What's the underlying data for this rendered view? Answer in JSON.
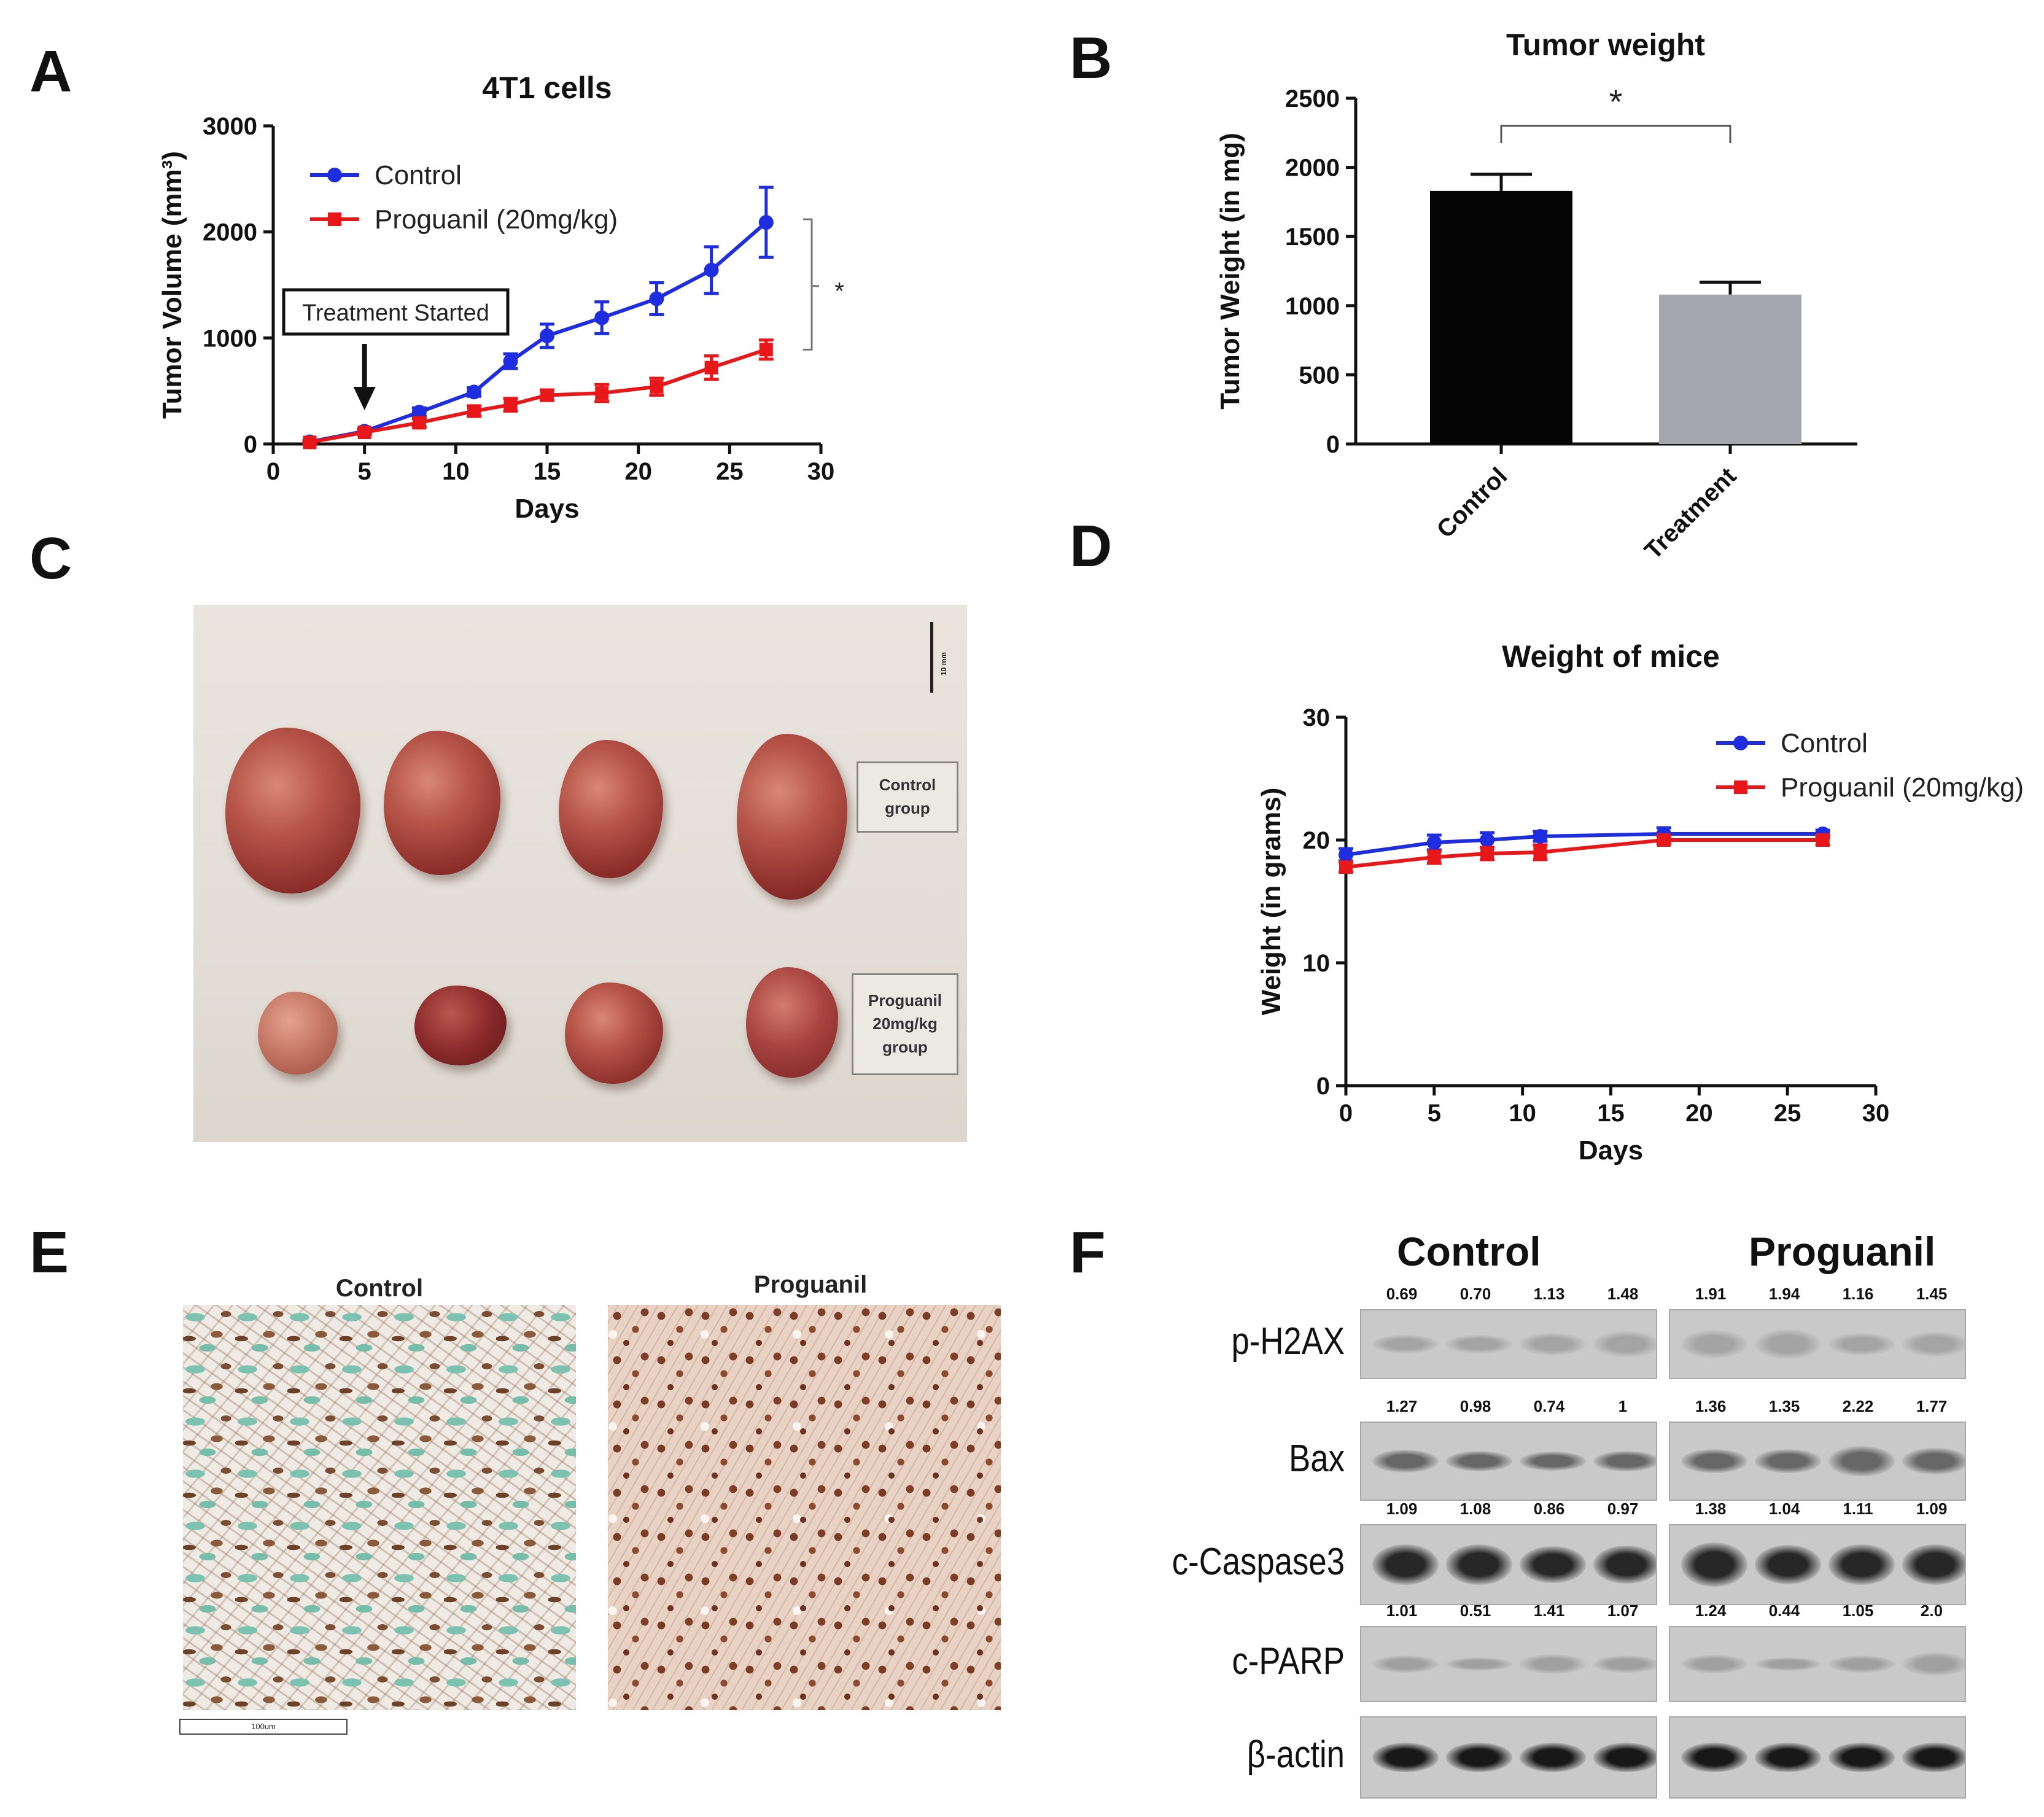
{
  "panel_letters": {
    "a": "A",
    "b": "B",
    "c": "C",
    "d": "D",
    "e": "E",
    "f": "F"
  },
  "chart_data": [
    {
      "id": "A",
      "type": "line",
      "title": "4T1 cells",
      "xlabel": "Days",
      "ylabel": "Tumor Volume (mm³)",
      "xlim": [
        0,
        30
      ],
      "ylim": [
        0,
        3000
      ],
      "xticks": [
        0,
        5,
        10,
        15,
        20,
        25,
        30
      ],
      "yticks": [
        0,
        1000,
        2000,
        3000
      ],
      "series": [
        {
          "name": "Control",
          "color": "#1f2de0",
          "marker": "circle",
          "x": [
            2,
            5,
            8,
            11,
            13,
            15,
            18,
            21,
            24,
            27
          ],
          "y": [
            20,
            120,
            300,
            490,
            780,
            1020,
            1190,
            1370,
            1640,
            2090
          ],
          "err": [
            10,
            25,
            40,
            40,
            70,
            110,
            150,
            150,
            220,
            330
          ]
        },
        {
          "name": "Proguanil (20mg/kg)",
          "color": "#e8171a",
          "marker": "square",
          "x": [
            2,
            5,
            8,
            11,
            13,
            15,
            18,
            21,
            24,
            27
          ],
          "y": [
            15,
            110,
            200,
            310,
            370,
            460,
            480,
            540,
            720,
            890
          ],
          "err": [
            10,
            20,
            40,
            50,
            60,
            50,
            80,
            80,
            110,
            90
          ]
        }
      ],
      "annotations": {
        "treatment_label": "Treatment Started",
        "arrow_at_x": 5,
        "significance": "*"
      }
    },
    {
      "id": "B",
      "type": "bar",
      "title": "Tumor weight",
      "xlabel": "",
      "ylabel": "Tumor Weight (in mg)",
      "ylim": [
        0,
        2500
      ],
      "yticks": [
        0,
        500,
        1000,
        1500,
        2000,
        2500
      ],
      "categories": [
        "Control",
        "Treatment"
      ],
      "values": [
        1830,
        1080
      ],
      "errors": [
        120,
        90
      ],
      "colors": [
        "#050505",
        "#a6a6ae"
      ],
      "significance": "*"
    },
    {
      "id": "D",
      "type": "line",
      "title": "Weight of mice",
      "xlabel": "Days",
      "ylabel": "Weight (in grams)",
      "xlim": [
        0,
        30
      ],
      "ylim": [
        0,
        30
      ],
      "xticks": [
        0,
        5,
        10,
        15,
        20,
        25,
        30
      ],
      "yticks": [
        0,
        10,
        20,
        30
      ],
      "series": [
        {
          "name": "Control",
          "color": "#1f2de0",
          "marker": "circle",
          "x": [
            0,
            5,
            8,
            11,
            18,
            27
          ],
          "y": [
            18.8,
            19.8,
            20.0,
            20.3,
            20.5,
            20.5
          ],
          "err": [
            0.5,
            0.6,
            0.6,
            0.4,
            0.5,
            0.3
          ]
        },
        {
          "name": "Proguanil (20mg/kg)",
          "color": "#e8171a",
          "marker": "square",
          "x": [
            0,
            5,
            8,
            11,
            18,
            27
          ],
          "y": [
            17.8,
            18.6,
            18.9,
            19.0,
            20.0,
            20.0
          ],
          "err": [
            0.4,
            0.5,
            0.5,
            0.6,
            0.3,
            0.4
          ]
        }
      ]
    }
  ],
  "photo": {
    "control_box_line1": "Control",
    "control_box_line2": "group",
    "proguanil_box_line1": "Proguanil",
    "proguanil_box_line2": "20mg/kg",
    "proguanil_box_line3": "group",
    "scale_label": "10 mm"
  },
  "histology": {
    "control_label": "Control",
    "proguanil_label": "Proguanil",
    "scale_label": "100um"
  },
  "western_blot": {
    "control_header": "Control",
    "proguanil_header": "Proguanil",
    "rows": [
      {
        "label": "p-H2AX",
        "control": [
          "0.69",
          "0.70",
          "1.13",
          "1.48"
        ],
        "proguanil": [
          "1.91",
          "1.94",
          "1.16",
          "1.45"
        ]
      },
      {
        "label": "Bax",
        "control": [
          "1.27",
          "0.98",
          "0.74",
          "1"
        ],
        "proguanil": [
          "1.36",
          "1.35",
          "2.22",
          "1.77"
        ]
      },
      {
        "label": "c-Caspase3",
        "control": [
          "1.09",
          "1.08",
          "0.86",
          "0.97"
        ],
        "proguanil": [
          "1.38",
          "1.04",
          "1.11",
          "1.09"
        ]
      },
      {
        "label": "c-PARP",
        "control": [
          "1.01",
          "0.51",
          "1.41",
          "1.07"
        ],
        "proguanil": [
          "1.24",
          "0.44",
          "1.05",
          "2.0"
        ]
      },
      {
        "label": "β-actin",
        "control": [],
        "proguanil": []
      }
    ]
  }
}
